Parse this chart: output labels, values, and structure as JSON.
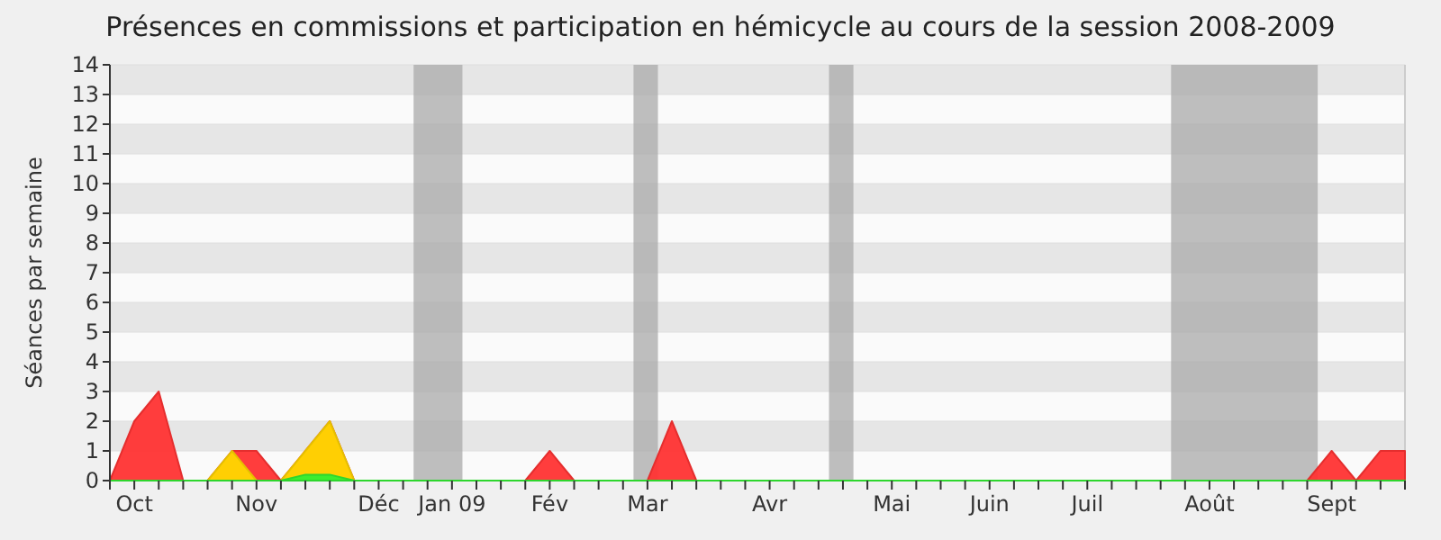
{
  "chart_data": {
    "type": "area",
    "title": "Présences en commissions et participation en hémicycle au cours de la session 2008-2009",
    "ylabel": "Séances par semaine",
    "x": [
      "2008-09-29",
      "2008-10-06",
      "2008-10-13",
      "2008-10-20",
      "2008-10-27",
      "2008-11-03",
      "2008-11-10",
      "2008-11-17",
      "2008-11-24",
      "2008-12-01",
      "2008-12-08",
      "2008-12-15",
      "2008-12-22",
      "2008-12-29",
      "2009-01-05",
      "2009-01-12",
      "2009-01-19",
      "2009-01-26",
      "2009-02-02",
      "2009-02-09",
      "2009-02-16",
      "2009-02-23",
      "2009-03-02",
      "2009-03-09",
      "2009-03-16",
      "2009-03-23",
      "2009-03-30",
      "2009-04-06",
      "2009-04-13",
      "2009-04-20",
      "2009-04-27",
      "2009-05-04",
      "2009-05-11",
      "2009-05-18",
      "2009-05-25",
      "2009-06-01",
      "2009-06-08",
      "2009-06-15",
      "2009-06-22",
      "2009-06-29",
      "2009-07-06",
      "2009-07-13",
      "2009-07-20",
      "2009-07-27",
      "2009-08-03",
      "2009-08-10",
      "2009-08-17",
      "2009-08-24",
      "2009-08-31",
      "2009-09-07",
      "2009-09-14",
      "2009-09-21",
      "2009-09-28",
      "2009-10-05"
    ],
    "series": [
      {
        "color": "#ff3333",
        "values": [
          0,
          2,
          3,
          0,
          0,
          1,
          1,
          0,
          1,
          2,
          0,
          0,
          0,
          0,
          0,
          0,
          0,
          0,
          1,
          0,
          0,
          0,
          0,
          2,
          0,
          0,
          0,
          0,
          0,
          0,
          0,
          0,
          0,
          0,
          0,
          0,
          0,
          0,
          0,
          0,
          0,
          0,
          0,
          0,
          0,
          0,
          0,
          0,
          0,
          0,
          1,
          0,
          1,
          1
        ]
      },
      {
        "color": "#ffd700",
        "values": [
          0,
          0,
          0,
          0,
          0,
          1,
          0,
          0,
          1,
          2,
          0,
          0,
          0,
          0,
          0,
          0,
          0,
          0,
          0,
          0,
          0,
          0,
          0,
          0,
          0,
          0,
          0,
          0,
          0,
          0,
          0,
          0,
          0,
          0,
          0,
          0,
          0,
          0,
          0,
          0,
          0,
          0,
          0,
          0,
          0,
          0,
          0,
          0,
          0,
          0,
          0,
          0,
          0,
          0
        ]
      },
      {
        "color": "#33ee33",
        "values": [
          0,
          0,
          0,
          0,
          0,
          0,
          0,
          0,
          0.2,
          0.2,
          0,
          0,
          0,
          0,
          0,
          0,
          0,
          0,
          0,
          0,
          0,
          0,
          0,
          0,
          0,
          0,
          0,
          0,
          0,
          0,
          0,
          0,
          0,
          0,
          0,
          0,
          0,
          0,
          0,
          0,
          0,
          0,
          0,
          0,
          0,
          0,
          0,
          0,
          0,
          0,
          0,
          0,
          0,
          0
        ]
      }
    ],
    "xlim": [
      "2008-09-29",
      "2009-10-05"
    ],
    "xticks": [
      {
        "value": "2008-10-06",
        "label": "Oct"
      },
      {
        "value": "2008-11-10",
        "label": "Nov"
      },
      {
        "value": "2008-12-15",
        "label": "Déc"
      },
      {
        "value": "2009-01-05",
        "label": "Jan 09"
      },
      {
        "value": "2009-02-02",
        "label": "Fév"
      },
      {
        "value": "2009-03-02",
        "label": "Mar"
      },
      {
        "value": "2009-04-06",
        "label": "Avr"
      },
      {
        "value": "2009-05-11",
        "label": "Mai"
      },
      {
        "value": "2009-06-08",
        "label": "Juin"
      },
      {
        "value": "2009-07-06",
        "label": "Juil"
      },
      {
        "value": "2009-08-10",
        "label": "Août"
      },
      {
        "value": "2009-09-14",
        "label": "Sept"
      }
    ],
    "ylim": [
      0,
      14
    ],
    "yticks": [
      0,
      1,
      2,
      3,
      4,
      5,
      6,
      7,
      8,
      9,
      10,
      11,
      12,
      13,
      14
    ],
    "grid": "y",
    "bands": [
      {
        "axis": "x",
        "from": "2008-12-25",
        "to": "2009-01-08",
        "color": "#aaaaaa"
      },
      {
        "axis": "x",
        "from": "2009-02-26",
        "to": "2009-03-05",
        "color": "#aaaaaa"
      },
      {
        "axis": "x",
        "from": "2009-04-23",
        "to": "2009-04-30",
        "color": "#aaaaaa"
      },
      {
        "axis": "x",
        "from": "2009-07-30",
        "to": "2009-09-10",
        "color": "#aaaaaa"
      }
    ]
  }
}
